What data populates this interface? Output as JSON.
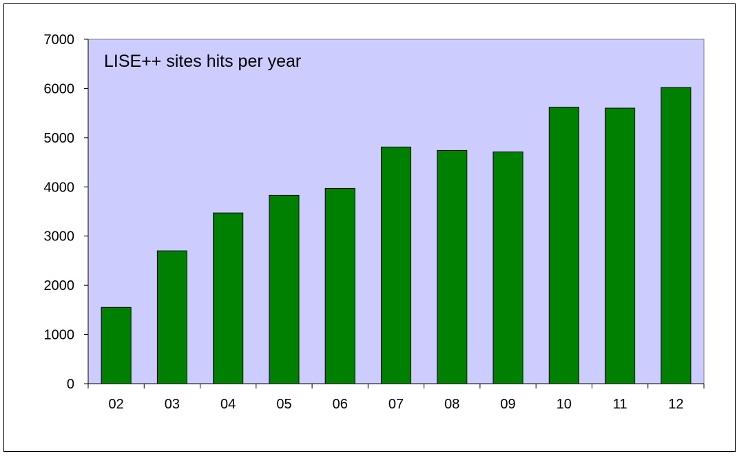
{
  "chart_data": {
    "type": "bar",
    "title": "LISE++ sites hits per year",
    "categories": [
      "02",
      "03",
      "04",
      "05",
      "06",
      "07",
      "08",
      "09",
      "10",
      "11",
      "12"
    ],
    "values": [
      1550,
      2700,
      3470,
      3830,
      3970,
      4810,
      4740,
      4710,
      5620,
      5600,
      6020
    ],
    "ylim": [
      0,
      7000
    ],
    "yticks": [
      "0",
      "1000",
      "2000",
      "3000",
      "4000",
      "5000",
      "6000",
      "7000"
    ],
    "xlabel": "",
    "ylabel": "",
    "grid": false,
    "legend": "none",
    "colors": {
      "plot_background": "#ccccff",
      "bar_fill": "#008000",
      "bar_stroke": "#000000",
      "axis": "#000000"
    }
  }
}
